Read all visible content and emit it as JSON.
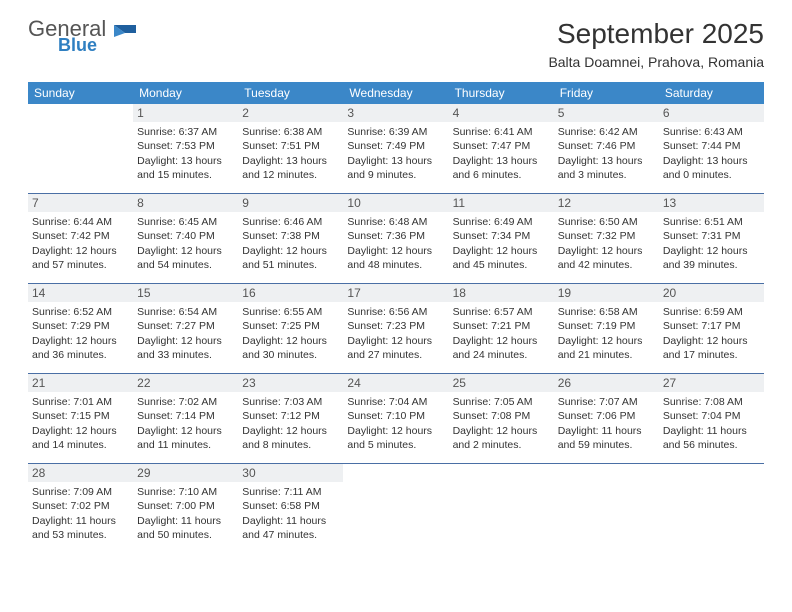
{
  "logo": {
    "line1": "General",
    "line2": "Blue"
  },
  "title": "September 2025",
  "location": "Balta Doamnei, Prahova, Romania",
  "colors": {
    "header_bg": "#3b87c8",
    "header_fg": "#ffffff",
    "daynum_bg": "#eef0f2",
    "row_border": "#4a6fa5",
    "logo_gray": "#555555",
    "logo_blue": "#2f7fc1"
  },
  "weekdays": [
    "Sunday",
    "Monday",
    "Tuesday",
    "Wednesday",
    "Thursday",
    "Friday",
    "Saturday"
  ],
  "first_weekday_index": 1,
  "days_in_month": 30,
  "days": {
    "1": {
      "sunrise": "6:37 AM",
      "sunset": "7:53 PM",
      "daylight": "13 hours and 15 minutes."
    },
    "2": {
      "sunrise": "6:38 AM",
      "sunset": "7:51 PM",
      "daylight": "13 hours and 12 minutes."
    },
    "3": {
      "sunrise": "6:39 AM",
      "sunset": "7:49 PM",
      "daylight": "13 hours and 9 minutes."
    },
    "4": {
      "sunrise": "6:41 AM",
      "sunset": "7:47 PM",
      "daylight": "13 hours and 6 minutes."
    },
    "5": {
      "sunrise": "6:42 AM",
      "sunset": "7:46 PM",
      "daylight": "13 hours and 3 minutes."
    },
    "6": {
      "sunrise": "6:43 AM",
      "sunset": "7:44 PM",
      "daylight": "13 hours and 0 minutes."
    },
    "7": {
      "sunrise": "6:44 AM",
      "sunset": "7:42 PM",
      "daylight": "12 hours and 57 minutes."
    },
    "8": {
      "sunrise": "6:45 AM",
      "sunset": "7:40 PM",
      "daylight": "12 hours and 54 minutes."
    },
    "9": {
      "sunrise": "6:46 AM",
      "sunset": "7:38 PM",
      "daylight": "12 hours and 51 minutes."
    },
    "10": {
      "sunrise": "6:48 AM",
      "sunset": "7:36 PM",
      "daylight": "12 hours and 48 minutes."
    },
    "11": {
      "sunrise": "6:49 AM",
      "sunset": "7:34 PM",
      "daylight": "12 hours and 45 minutes."
    },
    "12": {
      "sunrise": "6:50 AM",
      "sunset": "7:32 PM",
      "daylight": "12 hours and 42 minutes."
    },
    "13": {
      "sunrise": "6:51 AM",
      "sunset": "7:31 PM",
      "daylight": "12 hours and 39 minutes."
    },
    "14": {
      "sunrise": "6:52 AM",
      "sunset": "7:29 PM",
      "daylight": "12 hours and 36 minutes."
    },
    "15": {
      "sunrise": "6:54 AM",
      "sunset": "7:27 PM",
      "daylight": "12 hours and 33 minutes."
    },
    "16": {
      "sunrise": "6:55 AM",
      "sunset": "7:25 PM",
      "daylight": "12 hours and 30 minutes."
    },
    "17": {
      "sunrise": "6:56 AM",
      "sunset": "7:23 PM",
      "daylight": "12 hours and 27 minutes."
    },
    "18": {
      "sunrise": "6:57 AM",
      "sunset": "7:21 PM",
      "daylight": "12 hours and 24 minutes."
    },
    "19": {
      "sunrise": "6:58 AM",
      "sunset": "7:19 PM",
      "daylight": "12 hours and 21 minutes."
    },
    "20": {
      "sunrise": "6:59 AM",
      "sunset": "7:17 PM",
      "daylight": "12 hours and 17 minutes."
    },
    "21": {
      "sunrise": "7:01 AM",
      "sunset": "7:15 PM",
      "daylight": "12 hours and 14 minutes."
    },
    "22": {
      "sunrise": "7:02 AM",
      "sunset": "7:14 PM",
      "daylight": "12 hours and 11 minutes."
    },
    "23": {
      "sunrise": "7:03 AM",
      "sunset": "7:12 PM",
      "daylight": "12 hours and 8 minutes."
    },
    "24": {
      "sunrise": "7:04 AM",
      "sunset": "7:10 PM",
      "daylight": "12 hours and 5 minutes."
    },
    "25": {
      "sunrise": "7:05 AM",
      "sunset": "7:08 PM",
      "daylight": "12 hours and 2 minutes."
    },
    "26": {
      "sunrise": "7:07 AM",
      "sunset": "7:06 PM",
      "daylight": "11 hours and 59 minutes."
    },
    "27": {
      "sunrise": "7:08 AM",
      "sunset": "7:04 PM",
      "daylight": "11 hours and 56 minutes."
    },
    "28": {
      "sunrise": "7:09 AM",
      "sunset": "7:02 PM",
      "daylight": "11 hours and 53 minutes."
    },
    "29": {
      "sunrise": "7:10 AM",
      "sunset": "7:00 PM",
      "daylight": "11 hours and 50 minutes."
    },
    "30": {
      "sunrise": "7:11 AM",
      "sunset": "6:58 PM",
      "daylight": "11 hours and 47 minutes."
    }
  }
}
